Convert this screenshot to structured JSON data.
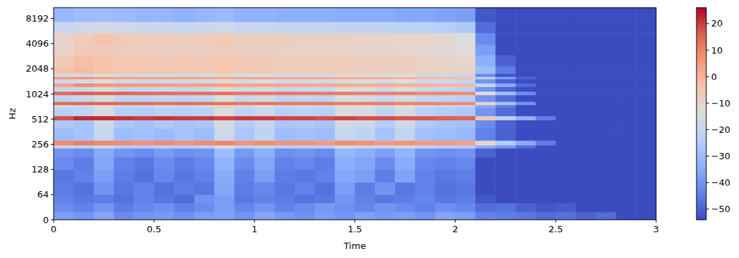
{
  "chart_data": {
    "type": "heatmap",
    "x_label": "Time",
    "y_label": "Hz",
    "log": "y",
    "color": "coolwarm",
    "xlim": [
      0,
      3
    ],
    "xticks": [
      0,
      0.5,
      1,
      1.5,
      2,
      2.5,
      3
    ],
    "ylim": [
      0,
      11025
    ],
    "yticks": [
      0,
      64,
      128,
      256,
      512,
      1024,
      2048,
      4096,
      8192
    ],
    "x_bins": [
      0,
      0.1,
      0.2,
      0.3,
      0.4,
      0.5,
      0.6,
      0.7,
      0.8,
      0.9,
      1,
      1.1,
      1.2,
      1.3,
      1.4,
      1.5,
      1.6,
      1.7,
      1.8,
      1.9,
      2,
      2.1,
      2.2,
      2.3,
      2.4,
      2.5,
      2.6,
      2.7,
      2.8,
      2.9,
      3
    ],
    "y_bins": [
      0,
      20,
      43,
      64,
      90,
      128,
      180,
      230,
      250,
      285,
      400,
      500,
      560,
      700,
      760,
      830,
      1000,
      1100,
      1250,
      1380,
      1550,
      1650,
      1800,
      2200,
      3000,
      4000,
      5500,
      7500,
      11025
    ],
    "cells": [
      [
        -38,
        -40,
        -36,
        -42,
        -40,
        -39,
        -41,
        -38,
        -37,
        -40,
        -36,
        -39,
        -41,
        -38,
        -40,
        -37,
        -39,
        -38,
        -40,
        -36,
        -38,
        -44,
        -45,
        -46,
        -48,
        -47,
        -50,
        -48,
        -54,
        -54
      ],
      [
        -42,
        -44,
        -40,
        -45,
        -43,
        -41,
        -44,
        -42,
        -38,
        -43,
        -40,
        -44,
        -42,
        -39,
        -41,
        -43,
        -40,
        -42,
        -44,
        -41,
        -43,
        -48,
        -47,
        -50,
        -52,
        -51,
        -54,
        -54,
        -54,
        -54
      ],
      [
        -44,
        -46,
        -45,
        -47,
        -44,
        -46,
        -48,
        -40,
        -38,
        -46,
        -44,
        -45,
        -47,
        -46,
        -40,
        -44,
        -46,
        -45,
        -43,
        -46,
        -45,
        -52,
        -54,
        -54,
        -54,
        -54,
        -54,
        -54,
        -54,
        -54
      ],
      [
        -45,
        -47,
        -40,
        -46,
        -44,
        -47,
        -45,
        -46,
        -36,
        -45,
        -43,
        -46,
        -44,
        -47,
        -38,
        -45,
        -40,
        -46,
        -44,
        -47,
        -46,
        -54,
        -54,
        -54,
        -54,
        -54,
        -54,
        -54,
        -54,
        -54
      ],
      [
        -46,
        -44,
        -38,
        -45,
        -47,
        -43,
        -46,
        -44,
        -35,
        -44,
        -38,
        -45,
        -46,
        -44,
        -36,
        -38,
        -45,
        -37,
        -44,
        -46,
        -45,
        -54,
        -54,
        -54,
        -54,
        -54,
        -54,
        -54,
        -54,
        -54
      ],
      [
        -42,
        -45,
        -36,
        -44,
        -46,
        -42,
        -45,
        -43,
        -33,
        -42,
        -36,
        -44,
        -43,
        -45,
        -34,
        -36,
        -42,
        -35,
        -43,
        -44,
        -43,
        -54,
        -54,
        -54,
        -54,
        -54,
        -54,
        -54,
        -54,
        -54
      ],
      [
        -40,
        -42,
        -35,
        -40,
        -42,
        -39,
        -41,
        -40,
        -30,
        -39,
        -34,
        -41,
        -40,
        -42,
        -32,
        -34,
        -38,
        -33,
        -40,
        -41,
        -40,
        -50,
        -54,
        -54,
        -54,
        -54,
        -54,
        -54,
        -54,
        -54
      ],
      [
        -20,
        -22,
        -18,
        -24,
        -25,
        -23,
        -24,
        -22,
        -14,
        -21,
        -20,
        -23,
        -22,
        -24,
        -15,
        -18,
        -20,
        -17,
        -22,
        -24,
        -25,
        -35,
        -40,
        -48,
        -54,
        -54,
        -54,
        -54,
        -54,
        -54
      ],
      [
        8,
        10,
        9,
        8,
        7,
        8,
        7,
        8,
        9,
        7,
        8,
        7,
        7,
        6,
        8,
        7,
        6,
        7,
        6,
        5,
        4,
        -10,
        -25,
        -35,
        -45,
        -54,
        -54,
        -54,
        -54,
        -54
      ],
      [
        -30,
        -28,
        -20,
        -30,
        -29,
        -31,
        -28,
        -30,
        -18,
        -27,
        -22,
        -30,
        -29,
        -30,
        -20,
        -22,
        -28,
        -21,
        -29,
        -30,
        -32,
        -44,
        -50,
        -54,
        -54,
        -54,
        -54,
        -54,
        -54,
        -54
      ],
      [
        -26,
        -28,
        -18,
        -27,
        -29,
        -26,
        -28,
        -27,
        -16,
        -25,
        -20,
        -27,
        -26,
        -28,
        -17,
        -19,
        -25,
        -18,
        -26,
        -28,
        -29,
        -42,
        -50,
        -54,
        -54,
        -54,
        -54,
        -54,
        -54,
        -54
      ],
      [
        18,
        22,
        22,
        21,
        20,
        21,
        20,
        20,
        19,
        20,
        20,
        19,
        19,
        18,
        19,
        18,
        18,
        17,
        17,
        16,
        15,
        -5,
        -22,
        -34,
        -45,
        -54,
        -54,
        -54,
        -54,
        -54
      ],
      [
        -24,
        -22,
        -16,
        -24,
        -25,
        -23,
        -24,
        -23,
        -14,
        -22,
        -18,
        -24,
        -23,
        -24,
        -15,
        -16,
        -22,
        -16,
        -23,
        -25,
        -26,
        -40,
        -48,
        -54,
        -54,
        -54,
        -54,
        -54,
        -54,
        -54
      ],
      [
        -18,
        -20,
        -14,
        -20,
        -21,
        -19,
        -20,
        -19,
        -12,
        -18,
        -16,
        -20,
        -19,
        -20,
        -13,
        -14,
        -18,
        -14,
        -19,
        -21,
        -22,
        -36,
        -45,
        -54,
        -54,
        -54,
        -54,
        -54,
        -54,
        -54
      ],
      [
        14,
        15,
        15,
        14,
        14,
        13,
        14,
        13,
        13,
        12,
        13,
        12,
        12,
        12,
        11,
        11,
        11,
        10,
        10,
        9,
        8,
        -10,
        -28,
        -40,
        -54,
        -54,
        -54,
        -54,
        -54,
        -54
      ],
      [
        -22,
        -20,
        -16,
        -22,
        -23,
        -21,
        -22,
        -21,
        -14,
        -20,
        -17,
        -22,
        -21,
        -22,
        -15,
        -16,
        -20,
        -16,
        -21,
        -22,
        -24,
        -40,
        -48,
        -54,
        -54,
        -54,
        -54,
        -54,
        -54,
        -54
      ],
      [
        14,
        16,
        15,
        15,
        14,
        14,
        13,
        13,
        13,
        12,
        12,
        12,
        11,
        11,
        11,
        10,
        10,
        10,
        9,
        9,
        8,
        -12,
        -30,
        -42,
        -54,
        -54,
        -54,
        -54,
        -54,
        -54
      ],
      [
        -20,
        -19,
        -15,
        -20,
        -21,
        -19,
        -20,
        -19,
        -13,
        -18,
        -16,
        -20,
        -19,
        -20,
        -14,
        -15,
        -18,
        -15,
        -19,
        -21,
        -23,
        -40,
        -50,
        -54,
        -54,
        -54,
        -54,
        -54,
        -54,
        -54
      ],
      [
        4,
        8,
        6,
        6,
        5,
        5,
        4,
        4,
        4,
        3,
        3,
        3,
        2,
        2,
        2,
        1,
        1,
        0,
        0,
        -1,
        -2,
        -20,
        -35,
        -48,
        -54,
        -54,
        -54,
        -54,
        -54,
        -54
      ],
      [
        -18,
        -17,
        -14,
        -18,
        -19,
        -18,
        -18,
        -17,
        -12,
        -17,
        -15,
        -18,
        -17,
        -18,
        -13,
        -14,
        -17,
        -14,
        -18,
        -19,
        -21,
        -40,
        -50,
        -54,
        -54,
        -54,
        -54,
        -54,
        -54,
        -54
      ],
      [
        6,
        7,
        6,
        5,
        5,
        4,
        4,
        4,
        3,
        3,
        3,
        2,
        2,
        2,
        1,
        1,
        0,
        0,
        -1,
        -2,
        -3,
        -22,
        -38,
        -50,
        -54,
        -54,
        -54,
        -54,
        -54,
        -54
      ],
      [
        -16,
        -16,
        -13,
        -17,
        -17,
        -16,
        -17,
        -16,
        -11,
        -16,
        -14,
        -17,
        -16,
        -17,
        -12,
        -13,
        -16,
        -13,
        -17,
        -18,
        -20,
        -42,
        -52,
        -54,
        -54,
        -54,
        -54,
        -54,
        -54,
        -54
      ],
      [
        -4,
        -2,
        -4,
        -5,
        -5,
        -6,
        -6,
        -6,
        -5,
        -6,
        -6,
        -7,
        -7,
        -7,
        -7,
        -8,
        -8,
        -8,
        -9,
        -9,
        -10,
        -30,
        -45,
        -54,
        -54,
        -54,
        -54,
        -54,
        -54,
        -54
      ],
      [
        -6,
        -3,
        -4,
        -5,
        -5,
        -6,
        -5,
        -6,
        -5,
        -6,
        -6,
        -7,
        -7,
        -7,
        -7,
        -8,
        -8,
        -8,
        -9,
        -10,
        -11,
        -34,
        -50,
        -54,
        -54,
        -54,
        -54,
        -54,
        -54,
        -54
      ],
      [
        -10,
        -6,
        -6,
        -7,
        -7,
        -8,
        -8,
        -8,
        -7,
        -8,
        -8,
        -9,
        -9,
        -9,
        -9,
        -10,
        -10,
        -11,
        -11,
        -12,
        -13,
        -38,
        -54,
        -54,
        -54,
        -54,
        -54,
        -54,
        -54,
        -54
      ],
      [
        -10,
        -7,
        -4,
        -6,
        -7,
        -7,
        -8,
        -7,
        -6,
        -8,
        -8,
        -8,
        -9,
        -9,
        -9,
        -10,
        -10,
        -11,
        -11,
        -12,
        -14,
        -42,
        -54,
        -54,
        -54,
        -54,
        -54,
        -54,
        -54,
        -54
      ],
      [
        -20,
        -18,
        -17,
        -18,
        -19,
        -19,
        -20,
        -19,
        -18,
        -20,
        -20,
        -21,
        -21,
        -21,
        -22,
        -22,
        -22,
        -23,
        -23,
        -24,
        -26,
        -48,
        -54,
        -54,
        -54,
        -54,
        -54,
        -54,
        -54,
        -54
      ],
      [
        -32,
        -30,
        -30,
        -31,
        -32,
        -32,
        -33,
        -32,
        -31,
        -33,
        -33,
        -34,
        -34,
        -34,
        -35,
        -35,
        -35,
        -36,
        -36,
        -37,
        -38,
        -52,
        -54,
        -54,
        -54,
        -54,
        -54,
        -54,
        -54,
        -54
      ]
    ],
    "colorbar": {
      "lim": [
        -54,
        26
      ],
      "ticks": [
        {
          "value": -50,
          "label": "−50"
        },
        {
          "value": -40,
          "label": "−40"
        },
        {
          "value": -30,
          "label": "−30"
        },
        {
          "value": -20,
          "label": "−20"
        },
        {
          "value": -10,
          "label": "−10"
        },
        0,
        10,
        20
      ]
    }
  }
}
